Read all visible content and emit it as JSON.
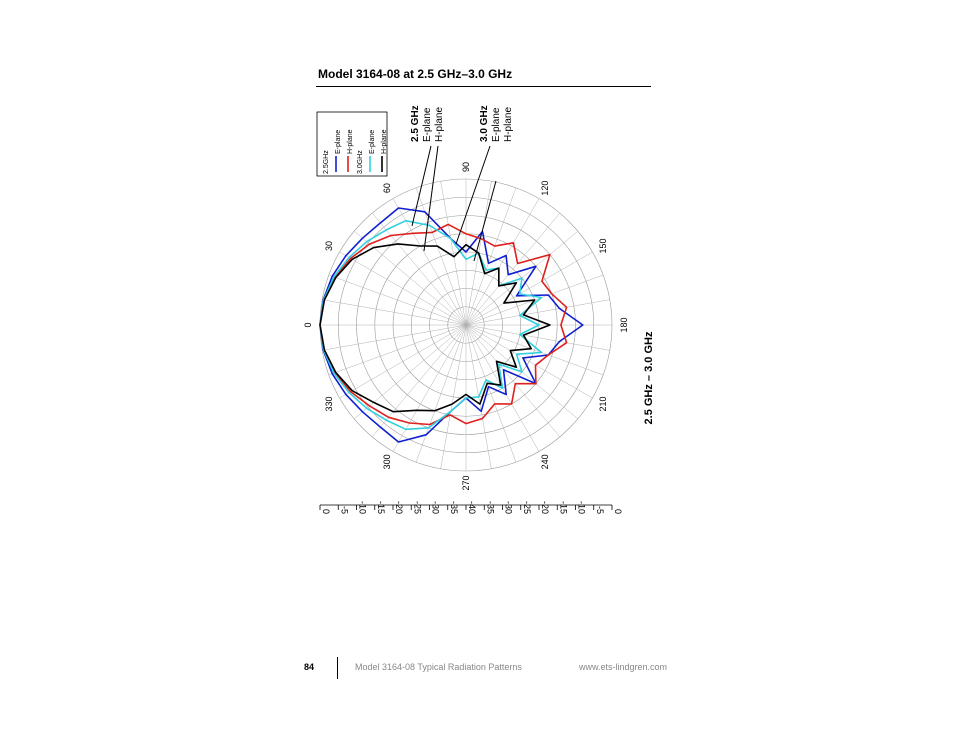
{
  "page": {
    "heading": "Model 3164-08 at 2.5 GHz–3.0 GHz",
    "footer": {
      "page_number": "84",
      "document_title": "Model 3164-08 Typical Radiation Patterns",
      "website": "www.ets-lindgren.com"
    }
  },
  "chart_data": {
    "type": "polar",
    "title": "2.5 GHz – 3.0 GHz",
    "orientation": "rotated 90° (figure reads sideways)",
    "angle_labels": [
      "0",
      "30",
      "60",
      "90",
      "120",
      "150",
      "180",
      "210",
      "240",
      "270",
      "300",
      "330"
    ],
    "radial_scale_labels": [
      "0",
      "-5",
      "-10",
      "-15",
      "-20",
      "-25",
      "-30",
      "-35",
      "-40",
      "-35",
      "-30",
      "-25",
      "-20",
      "-15",
      "-10",
      "-5",
      "0"
    ],
    "radial_range_db": [
      -40,
      0
    ],
    "grid": true,
    "legend": {
      "placement": "top-left",
      "groups": [
        {
          "label": "2.5GHz",
          "entries": [
            "E-plane",
            "H-plane"
          ]
        },
        {
          "label": "3.0GHz",
          "entries": [
            "E-plane",
            "H-plane"
          ]
        }
      ]
    },
    "annotations": [
      {
        "lines": [
          "2.5 GHz",
          "E-plane",
          "H-plane"
        ]
      },
      {
        "lines": [
          "3.0 GHz",
          "E-plane",
          "H-plane"
        ]
      }
    ],
    "colors": {
      "e25": "#1020d0",
      "h25": "#e0201c",
      "e30": "#30d0e0",
      "h30": "#000000"
    },
    "angles_deg": [
      0,
      10,
      20,
      30,
      40,
      50,
      60,
      70,
      80,
      90,
      100,
      110,
      120,
      130,
      140,
      150,
      160,
      170,
      180,
      190,
      200,
      210,
      220,
      230,
      240,
      250,
      260,
      270,
      280,
      290,
      300,
      310,
      320,
      330,
      340,
      350
    ],
    "series": [
      {
        "name": "2.5GHz E-plane",
        "color_key": "e25",
        "values": [
          0,
          -0.3,
          -1,
          -2,
          -3,
          -3.5,
          -3,
          -7,
          -16,
          -20,
          -14,
          -22,
          -18,
          -22,
          -15,
          -24,
          -16,
          -14,
          -8,
          -14,
          -16,
          -22,
          -15,
          -24,
          -18,
          -22,
          -16,
          -20,
          -16,
          -8,
          -3,
          -3.5,
          -3,
          -2,
          -1,
          -0.3
        ]
      },
      {
        "name": "2.5GHz H-plane",
        "color_key": "h25",
        "values": [
          0,
          -0.5,
          -1.8,
          -3.5,
          -5.5,
          -8,
          -11,
          -13,
          -12,
          -15,
          -16,
          -17,
          -14,
          -18,
          -10,
          -16,
          -15,
          -12,
          -14,
          -12,
          -16,
          -18,
          -15,
          -19,
          -15,
          -17,
          -14,
          -13,
          -15,
          -11,
          -9,
          -7,
          -5.5,
          -3.5,
          -1.8,
          -0.5
        ]
      },
      {
        "name": "3.0GHz E-plane",
        "color_key": "e30",
        "values": [
          0,
          -0.4,
          -1.5,
          -3,
          -4.5,
          -6,
          -7,
          -11,
          -16,
          -22,
          -20,
          -24,
          -22,
          -26,
          -20,
          -23,
          -18,
          -25,
          -20,
          -25,
          -18,
          -24,
          -20,
          -26,
          -20,
          -24,
          -20,
          -20,
          -16,
          -10,
          -7,
          -6,
          -4.5,
          -3,
          -1.5,
          -0.4
        ]
      },
      {
        "name": "3.0GHz H-plane",
        "color_key": "h30",
        "values": [
          0,
          -0.6,
          -2,
          -4,
          -7,
          -11,
          -15,
          -17,
          -21,
          -18,
          -20,
          -25,
          -22,
          -26,
          -22,
          -28,
          -20,
          -24,
          -17,
          -24,
          -21,
          -26,
          -22,
          -27,
          -21,
          -23,
          -18,
          -21,
          -18,
          -15,
          -13,
          -9,
          -7,
          -4,
          -2,
          -0.6
        ]
      }
    ]
  }
}
